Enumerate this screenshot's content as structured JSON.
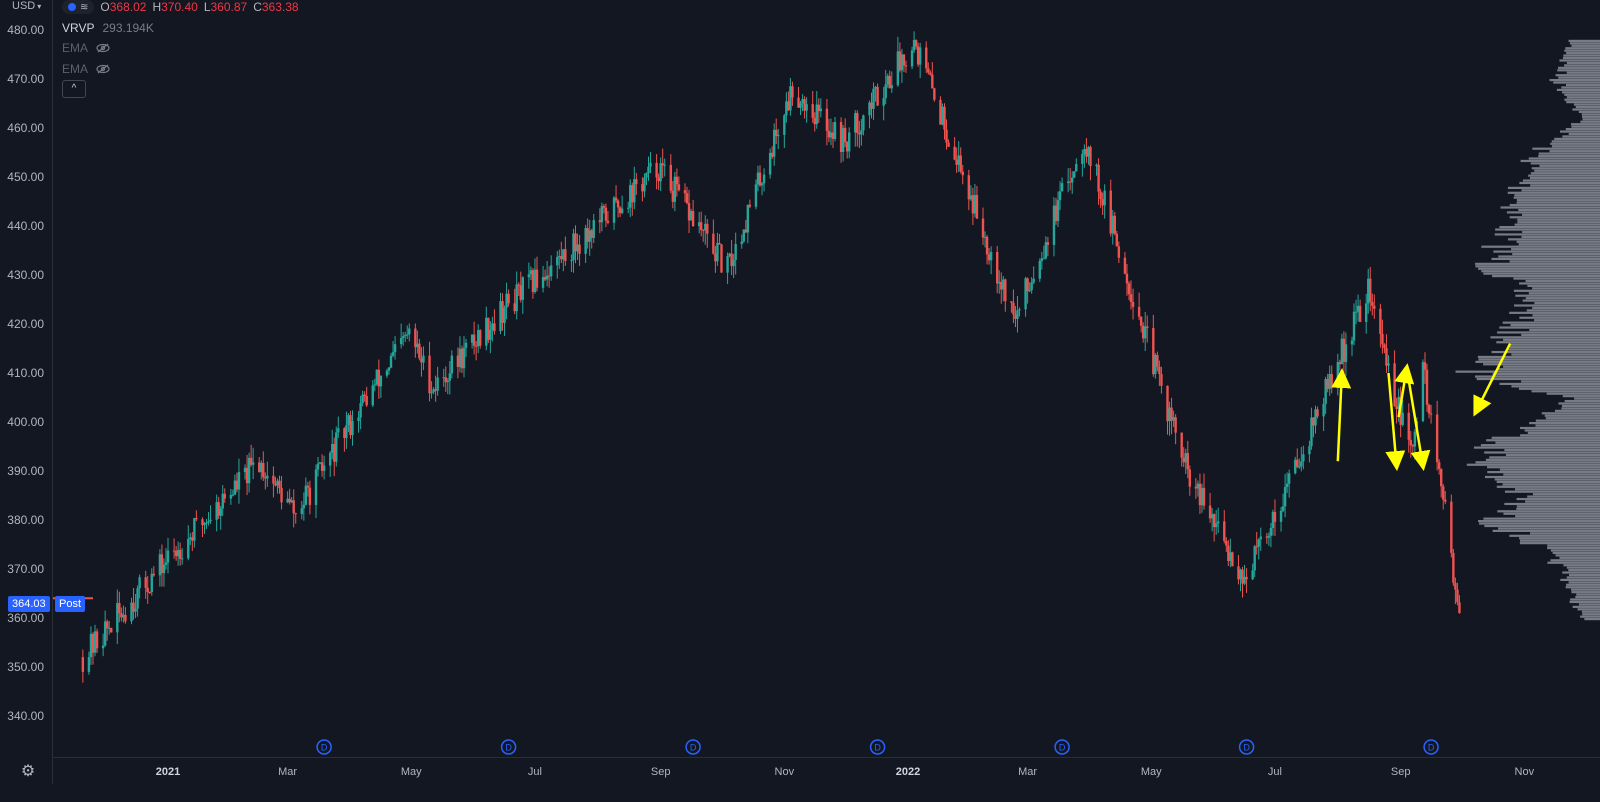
{
  "header": {
    "currency": "USD",
    "ohlc": [
      {
        "key": "O",
        "value": "368.02"
      },
      {
        "key": "H",
        "value": "370.40"
      },
      {
        "key": "L",
        "value": "360.87"
      },
      {
        "key": "C",
        "value": "363.38"
      }
    ]
  },
  "indicators": [
    {
      "name": "VRVP",
      "value": "293.194K",
      "visible": true
    },
    {
      "name": "EMA",
      "value": "",
      "visible": false
    },
    {
      "name": "EMA",
      "value": "",
      "visible": false
    }
  ],
  "collapse_label": "^",
  "price_scale": {
    "ticks": [
      "480.00",
      "470.00",
      "460.00",
      "450.00",
      "440.00",
      "430.00",
      "420.00",
      "410.00",
      "400.00",
      "390.00",
      "380.00",
      "370.00",
      "360.00",
      "350.00",
      "340.00"
    ],
    "last_price": "364.03",
    "session_label": "Post"
  },
  "time_axis": [
    {
      "label": "2021",
      "year": true
    },
    {
      "label": "Mar",
      "year": false
    },
    {
      "label": "May",
      "year": false
    },
    {
      "label": "Jul",
      "year": false
    },
    {
      "label": "Sep",
      "year": false
    },
    {
      "label": "Nov",
      "year": false
    },
    {
      "label": "2022",
      "year": true
    },
    {
      "label": "Mar",
      "year": false
    },
    {
      "label": "May",
      "year": false
    },
    {
      "label": "Jul",
      "year": false
    },
    {
      "label": "Sep",
      "year": false
    },
    {
      "label": "Nov",
      "year": false
    }
  ],
  "dividend_marker_label": "D",
  "colors": {
    "background": "#131722",
    "up": "#26a69a",
    "down": "#ef5350",
    "profile": "#8a8d96",
    "annotation": "#ffff00",
    "accent": "#2962ff"
  },
  "chart_data": {
    "type": "candlestick",
    "y_range": [
      335,
      482
    ],
    "anchors": [
      [
        "2020-11-20",
        352
      ],
      [
        "2021-01-01",
        372
      ],
      [
        "2021-02-15",
        392
      ],
      [
        "2021-03-05",
        381
      ],
      [
        "2021-04-01",
        400
      ],
      [
        "2021-04-30",
        418
      ],
      [
        "2021-05-12",
        407
      ],
      [
        "2021-06-15",
        423
      ],
      [
        "2021-07-15",
        434
      ],
      [
        "2021-08-31",
        452
      ],
      [
        "2021-10-04",
        431
      ],
      [
        "2021-11-05",
        468
      ],
      [
        "2021-12-01",
        457
      ],
      [
        "2022-01-04",
        478
      ],
      [
        "2022-02-23",
        421
      ],
      [
        "2022-03-29",
        458
      ],
      [
        "2022-05-20",
        388
      ],
      [
        "2022-06-16",
        368
      ],
      [
        "2022-07-01",
        381
      ],
      [
        "2022-08-16",
        427
      ],
      [
        "2022-09-06",
        393
      ],
      [
        "2022-09-12",
        411
      ],
      [
        "2022-09-30",
        362
      ]
    ],
    "volume_profile": [
      [
        478,
        0.08
      ],
      [
        470,
        0.12
      ],
      [
        462,
        0.05
      ],
      [
        455,
        0.18
      ],
      [
        448,
        0.22
      ],
      [
        440,
        0.25
      ],
      [
        432,
        0.3
      ],
      [
        425,
        0.2
      ],
      [
        418,
        0.25
      ],
      [
        410,
        0.35
      ],
      [
        405,
        0.08
      ],
      [
        400,
        0.18
      ],
      [
        395,
        0.3
      ],
      [
        390,
        0.32
      ],
      [
        385,
        0.22
      ],
      [
        380,
        0.3
      ],
      [
        375,
        0.18
      ],
      [
        370,
        0.1
      ],
      [
        365,
        0.08
      ],
      [
        360,
        0.05
      ]
    ]
  },
  "dividend_markers": [
    "2021-03-19",
    "2021-06-18",
    "2021-09-17",
    "2021-12-17",
    "2022-03-18",
    "2022-06-17",
    "2022-09-16"
  ],
  "annotations": [
    {
      "type": "arrow",
      "from": [
        "2022-08-01",
        392
      ],
      "to": [
        "2022-08-03",
        410
      ]
    },
    {
      "type": "arrow",
      "from": [
        "2022-08-26",
        410
      ],
      "to": [
        "2022-08-30",
        391
      ]
    },
    {
      "type": "arrow",
      "from": [
        "2022-08-31",
        401
      ],
      "to": [
        "2022-09-04",
        411
      ]
    },
    {
      "type": "arrow",
      "from": [
        "2022-09-04",
        411
      ],
      "to": [
        "2022-09-12",
        391
      ]
    },
    {
      "type": "arrow",
      "from": [
        "2022-10-25",
        416
      ],
      "to": [
        "2022-10-08",
        402
      ]
    }
  ]
}
